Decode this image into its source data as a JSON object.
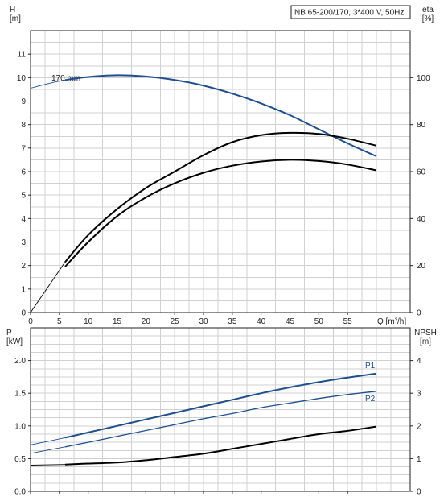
{
  "chart_data": [
    {
      "type": "line",
      "title": "NB 65-200/170, 3*400 V, 50Hz",
      "annotation": "170 mm",
      "y_left_label": [
        "H",
        "[m]"
      ],
      "y_right_label": [
        "eta",
        "[%]"
      ],
      "xlabel": "Q [m³/h]",
      "xlim": [
        0,
        60
      ],
      "x_ticks": [
        0,
        5,
        10,
        15,
        20,
        25,
        30,
        35,
        40,
        45,
        50,
        55
      ],
      "y_left_lim": [
        0,
        12
      ],
      "y_left_ticks": [
        0,
        1,
        2,
        3,
        4,
        5,
        6,
        7,
        8,
        9,
        10,
        11
      ],
      "y_right_lim": [
        0,
        120
      ],
      "y_right_ticks": [
        0,
        20,
        40,
        60,
        80,
        100
      ],
      "grid": true,
      "colors": {
        "head": "#1f4e8c",
        "eta": "#000000",
        "extrapolated": "#1f4e8c"
      },
      "series": [
        {
          "axis": "left",
          "color": "#1f4e8c",
          "x": [
            0,
            4,
            6,
            10,
            15,
            20,
            25,
            30,
            35,
            40,
            45,
            50,
            55,
            60
          ],
          "values": [
            9.55,
            9.8,
            9.9,
            10.03,
            10.1,
            10.05,
            9.9,
            9.66,
            9.32,
            8.9,
            8.4,
            7.8,
            7.2,
            6.65
          ]
        },
        {
          "axis": "right",
          "color": "#000000",
          "x": [
            0,
            6,
            10,
            15,
            20,
            25,
            30,
            35,
            40,
            45,
            50,
            55,
            60
          ],
          "values": [
            0,
            21.5,
            33,
            44,
            53,
            60,
            67,
            72.5,
            75.5,
            76.5,
            76,
            74,
            71
          ]
        },
        {
          "axis": "right",
          "color": "#000000",
          "x": [
            6,
            10,
            15,
            20,
            25,
            30,
            35,
            40,
            45,
            50,
            55,
            60
          ],
          "values": [
            19.5,
            30,
            41,
            49,
            55,
            59.5,
            62.5,
            64.3,
            65,
            64.5,
            63,
            60.5
          ]
        }
      ]
    },
    {
      "type": "line",
      "y_left_label": [
        "P",
        "[kW]"
      ],
      "y_right_label": [
        "NPSH",
        "[m]"
      ],
      "xlim": [
        0,
        60
      ],
      "x_ticks": [
        0,
        5,
        10,
        15,
        20,
        25,
        30,
        35,
        40,
        45,
        50,
        55
      ],
      "y_left_lim": [
        0,
        2.5
      ],
      "y_left_ticks": [
        "0.0",
        "0.5",
        "1.0",
        "1.5",
        "2.0"
      ],
      "y_right_lim": [
        0,
        5
      ],
      "y_right_ticks": [
        0,
        1,
        2,
        3,
        4
      ],
      "grid": true,
      "series": [
        {
          "name": "P1",
          "axis": "left",
          "color": "#1f4e8c",
          "x": [
            0,
            6,
            10,
            15,
            20,
            25,
            30,
            35,
            40,
            45,
            50,
            55,
            60
          ],
          "values": [
            0.71,
            0.82,
            0.9,
            1.0,
            1.1,
            1.2,
            1.3,
            1.4,
            1.5,
            1.59,
            1.67,
            1.74,
            1.8
          ]
        },
        {
          "name": "P2",
          "axis": "left",
          "color": "#1f4e8c",
          "x": [
            0,
            6,
            10,
            15,
            20,
            25,
            30,
            35,
            40,
            45,
            50,
            55,
            60
          ],
          "values": [
            0.58,
            0.68,
            0.75,
            0.84,
            0.93,
            1.02,
            1.11,
            1.19,
            1.28,
            1.35,
            1.42,
            1.48,
            1.53
          ]
        },
        {
          "axis": "right",
          "color": "#000000",
          "x": [
            0,
            6,
            10,
            15,
            20,
            25,
            30,
            35,
            40,
            45,
            50,
            55,
            60
          ],
          "values": [
            0.8,
            0.82,
            0.85,
            0.88,
            0.95,
            1.05,
            1.15,
            1.3,
            1.45,
            1.6,
            1.75,
            1.85,
            1.98
          ]
        }
      ]
    }
  ]
}
